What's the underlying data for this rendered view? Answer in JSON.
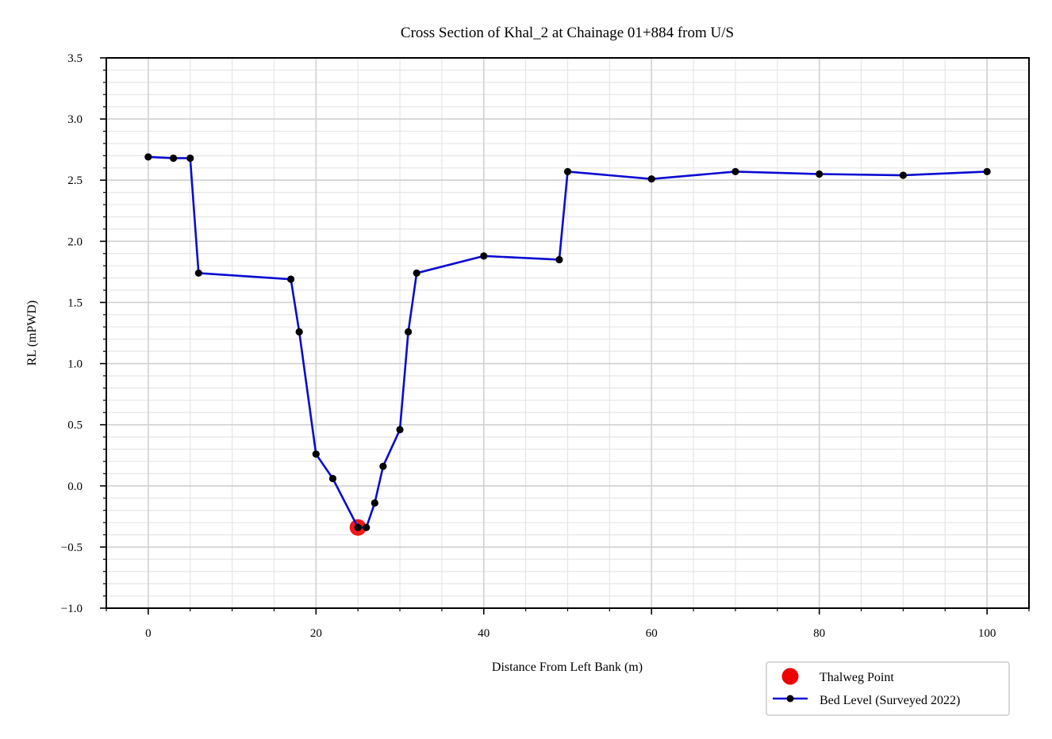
{
  "chart_data": {
    "type": "line",
    "title": "Cross Section of Khal_2 at Chainage 01+884 from U/S",
    "xlabel": "Distance From Left Bank (m)",
    "ylabel": "RL (mPWD)",
    "xlim": [
      -5,
      105
    ],
    "ylim": [
      -1.0,
      3.5
    ],
    "xticks": [
      0,
      20,
      40,
      60,
      80,
      100
    ],
    "xtick_labels": [
      "0",
      "20",
      "40",
      "60",
      "80",
      "100"
    ],
    "yticks": [
      -1.0,
      -0.5,
      0.0,
      0.5,
      1.0,
      1.5,
      2.0,
      2.5,
      3.0,
      3.5
    ],
    "ytick_labels": [
      "−1.0",
      "−0.5",
      "0.0",
      "0.5",
      "1.0",
      "1.5",
      "2.0",
      "2.5",
      "3.0",
      "3.5"
    ],
    "grid": true,
    "legend_position": "lower-right, below plot",
    "series": [
      {
        "name": "Bed Level (Surveyed 2022)",
        "color": "#0a0ad2",
        "marker_color": "#000000",
        "x": [
          0,
          3,
          5,
          6,
          17,
          18,
          20,
          22,
          25,
          26,
          27,
          28,
          30,
          31,
          32,
          40,
          49,
          50,
          60,
          70,
          80,
          90,
          100
        ],
        "y": [
          2.69,
          2.68,
          2.68,
          1.74,
          1.69,
          1.26,
          0.26,
          0.06,
          -0.34,
          -0.34,
          -0.14,
          0.16,
          0.46,
          1.26,
          1.74,
          1.88,
          1.85,
          2.57,
          2.51,
          2.57,
          2.55,
          2.54,
          2.57
        ]
      }
    ],
    "thalweg": {
      "name": "Thalweg Point",
      "color": "#ee0000",
      "x": 25,
      "y": -0.34
    }
  }
}
